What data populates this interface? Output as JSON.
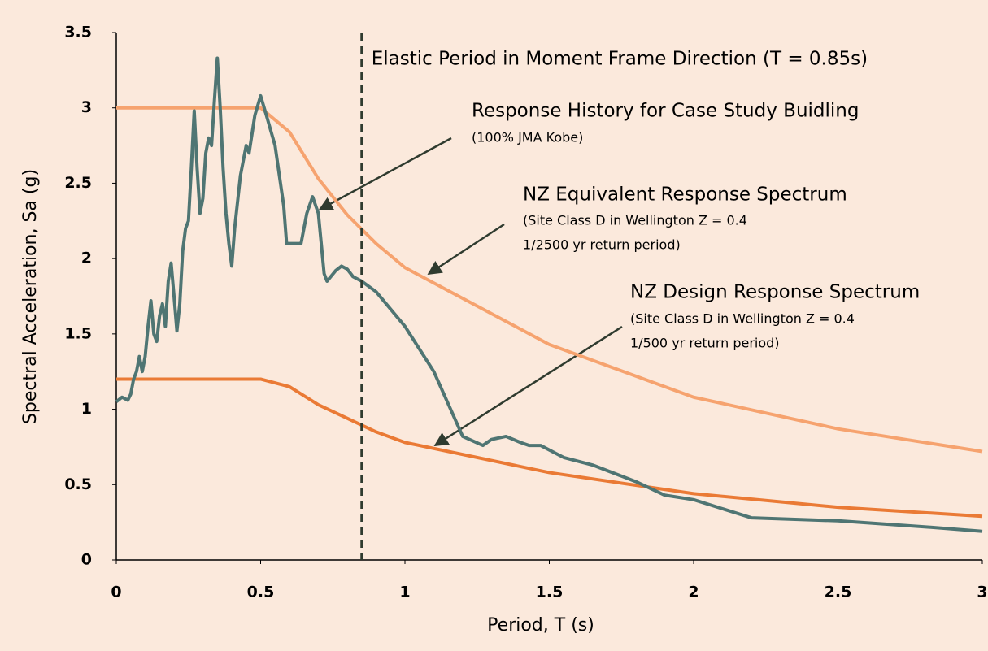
{
  "chart_data": {
    "type": "line",
    "xlabel": "Period, T (s)",
    "ylabel": "Spectral Acceleration, Sa (g)",
    "xlim": [
      0,
      3
    ],
    "ylim": [
      0,
      3.5
    ],
    "xticks": [
      0,
      0.5,
      1,
      1.5,
      2,
      2.5,
      3
    ],
    "yticks": [
      0,
      0.5,
      1,
      1.5,
      2,
      2.5,
      3,
      3.5
    ],
    "grid": false,
    "vline": {
      "x": 0.85,
      "label": "Elastic Period in Moment Frame Direction (T = 0.85s)",
      "color": "#2f3b2f"
    },
    "annotations": [
      {
        "text": "Response History for Case Study Buidling",
        "lines": [
          "(100% JMA Kobe)"
        ]
      },
      {
        "text": "NZ Equivalent Response Spectrum",
        "lines": [
          "(Site Class D in Wellington Z = 0.4",
          "1/2500 yr return period)"
        ]
      },
      {
        "text": "NZ Design Response Spectrum",
        "lines": [
          "(Site Class D in Wellington Z = 0.4",
          "1/500 yr return period)"
        ]
      }
    ],
    "series": [
      {
        "color": "#4f7573",
        "width": 4,
        "x": [
          0,
          0.02,
          0.04,
          0.05,
          0.06,
          0.07,
          0.08,
          0.09,
          0.1,
          0.11,
          0.12,
          0.13,
          0.14,
          0.15,
          0.16,
          0.17,
          0.18,
          0.19,
          0.2,
          0.21,
          0.22,
          0.23,
          0.24,
          0.25,
          0.26,
          0.27,
          0.28,
          0.29,
          0.3,
          0.31,
          0.32,
          0.33,
          0.34,
          0.35,
          0.36,
          0.37,
          0.38,
          0.39,
          0.4,
          0.41,
          0.43,
          0.45,
          0.46,
          0.48,
          0.5,
          0.52,
          0.55,
          0.58,
          0.59,
          0.62,
          0.64,
          0.66,
          0.68,
          0.7,
          0.72,
          0.73,
          0.76,
          0.78,
          0.8,
          0.82,
          0.85,
          0.9,
          1.0,
          1.1,
          1.2,
          1.27,
          1.3,
          1.35,
          1.4,
          1.43,
          1.47,
          1.52,
          1.55,
          1.65,
          1.8,
          1.9,
          2.0,
          2.2,
          2.5,
          2.8,
          3.0
        ],
        "values": [
          1.05,
          1.08,
          1.06,
          1.1,
          1.2,
          1.25,
          1.35,
          1.25,
          1.35,
          1.55,
          1.72,
          1.5,
          1.45,
          1.62,
          1.7,
          1.55,
          1.85,
          1.97,
          1.75,
          1.52,
          1.7,
          2.05,
          2.2,
          2.25,
          2.6,
          2.98,
          2.6,
          2.3,
          2.4,
          2.7,
          2.8,
          2.75,
          3.05,
          3.33,
          3.0,
          2.6,
          2.3,
          2.1,
          1.95,
          2.2,
          2.55,
          2.75,
          2.7,
          2.95,
          3.08,
          2.95,
          2.75,
          2.35,
          2.1,
          2.1,
          2.1,
          2.3,
          2.41,
          2.3,
          1.9,
          1.85,
          1.92,
          1.95,
          1.93,
          1.88,
          1.85,
          1.78,
          1.55,
          1.25,
          0.82,
          0.76,
          0.8,
          0.82,
          0.78,
          0.76,
          0.76,
          0.71,
          0.68,
          0.63,
          0.52,
          0.43,
          0.4,
          0.28,
          0.26,
          0.22,
          0.19
        ]
      },
      {
        "color": "#f6a36f",
        "width": 4,
        "x": [
          0,
          0.5,
          0.6,
          0.7,
          0.8,
          0.9,
          1.0,
          1.5,
          2.0,
          2.5,
          3.0
        ],
        "values": [
          3.0,
          3.0,
          2.84,
          2.53,
          2.29,
          2.1,
          1.94,
          1.43,
          1.08,
          0.87,
          0.72
        ]
      },
      {
        "color": "#ea7a35",
        "width": 4,
        "x": [
          0,
          0.5,
          0.6,
          0.7,
          0.8,
          0.9,
          1.0,
          1.5,
          2.0,
          2.5,
          3.0
        ],
        "values": [
          1.2,
          1.2,
          1.15,
          1.03,
          0.94,
          0.85,
          0.78,
          0.58,
          0.44,
          0.35,
          0.29
        ]
      }
    ]
  }
}
